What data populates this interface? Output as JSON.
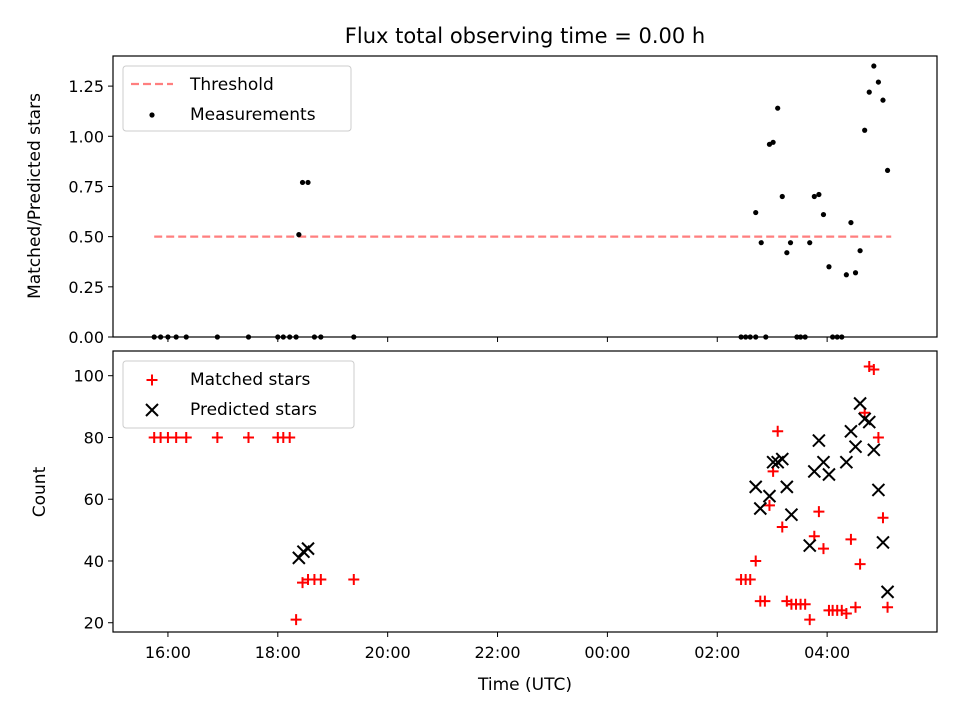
{
  "chart_data": [
    {
      "type": "scatter",
      "title": "Flux total observing time = 0.00 h",
      "xlabel": "",
      "ylabel": "Matched/Predicted stars",
      "xlim": [
        "2023-01-01T15:00",
        "2023-01-02T06:00"
      ],
      "ylim": [
        0,
        1.4
      ],
      "yticks": [
        0.0,
        0.25,
        0.5,
        0.75,
        1.0,
        1.25
      ],
      "ytick_labels": [
        "0.00",
        "0.25",
        "0.50",
        "0.75",
        "1.00",
        "1.25"
      ],
      "grid": false,
      "legend": "upper left",
      "threshold": {
        "name": "Threshold",
        "value": 0.5,
        "x_range": [
          "2023-01-01T15:45",
          "2023-01-02T05:10"
        ],
        "color": "#ff7f7f"
      },
      "series": [
        {
          "name": "Measurements",
          "color": "#000000",
          "points": [
            [
              "2023-01-01T15:45",
              0
            ],
            [
              "2023-01-01T15:52",
              0
            ],
            [
              "2023-01-01T16:00",
              0
            ],
            [
              "2023-01-01T16:09",
              0
            ],
            [
              "2023-01-01T16:20",
              0
            ],
            [
              "2023-01-01T16:54",
              0
            ],
            [
              "2023-01-01T17:28",
              0
            ],
            [
              "2023-01-01T18:00",
              0
            ],
            [
              "2023-01-01T18:06",
              0
            ],
            [
              "2023-01-01T18:13",
              0
            ],
            [
              "2023-01-01T18:20",
              0
            ],
            [
              "2023-01-01T18:23",
              0.51
            ],
            [
              "2023-01-01T18:27",
              0.77
            ],
            [
              "2023-01-01T18:33",
              0.77
            ],
            [
              "2023-01-01T18:40",
              0
            ],
            [
              "2023-01-01T18:47",
              0
            ],
            [
              "2023-01-01T19:23",
              0
            ],
            [
              "2023-01-02T02:26",
              0
            ],
            [
              "2023-01-02T02:31",
              0
            ],
            [
              "2023-01-02T02:36",
              0
            ],
            [
              "2023-01-02T02:42",
              0
            ],
            [
              "2023-01-02T02:42",
              0.62
            ],
            [
              "2023-01-02T02:48",
              0.47
            ],
            [
              "2023-01-02T02:53",
              0
            ],
            [
              "2023-01-02T02:57",
              0.96
            ],
            [
              "2023-01-02T03:01",
              0.97
            ],
            [
              "2023-01-02T03:06",
              1.14
            ],
            [
              "2023-01-02T03:11",
              0.7
            ],
            [
              "2023-01-02T03:16",
              0.42
            ],
            [
              "2023-01-02T03:20",
              0.47
            ],
            [
              "2023-01-02T03:27",
              0
            ],
            [
              "2023-01-02T03:31",
              0
            ],
            [
              "2023-01-02T03:36",
              0
            ],
            [
              "2023-01-02T03:41",
              0.47
            ],
            [
              "2023-01-02T03:46",
              0.7
            ],
            [
              "2023-01-02T03:51",
              0.71
            ],
            [
              "2023-01-02T03:56",
              0.61
            ],
            [
              "2023-01-02T04:02",
              0.35
            ],
            [
              "2023-01-02T04:06",
              0
            ],
            [
              "2023-01-02T04:11",
              0
            ],
            [
              "2023-01-02T04:16",
              0
            ],
            [
              "2023-01-02T04:21",
              0.31
            ],
            [
              "2023-01-02T04:26",
              0.57
            ],
            [
              "2023-01-02T04:31",
              0.32
            ],
            [
              "2023-01-02T04:36",
              0.43
            ],
            [
              "2023-01-02T04:41",
              1.03
            ],
            [
              "2023-01-02T04:46",
              1.22
            ],
            [
              "2023-01-02T04:51",
              1.35
            ],
            [
              "2023-01-02T04:56",
              1.27
            ],
            [
              "2023-01-02T05:01",
              1.18
            ],
            [
              "2023-01-02T05:06",
              0.83
            ]
          ]
        }
      ]
    },
    {
      "type": "scatter",
      "xlabel": "Time (UTC)",
      "ylabel": "Count",
      "xlim": [
        "2023-01-01T15:00",
        "2023-01-02T06:00"
      ],
      "ylim": [
        17,
        108
      ],
      "yticks": [
        20,
        40,
        60,
        80,
        100
      ],
      "xticks": [
        "2023-01-01T16:00",
        "2023-01-01T18:00",
        "2023-01-01T20:00",
        "2023-01-01T22:00",
        "2023-01-02T00:00",
        "2023-01-02T02:00",
        "2023-01-02T04:00"
      ],
      "xtick_labels": [
        "16:00",
        "18:00",
        "20:00",
        "22:00",
        "00:00",
        "02:00",
        "04:00"
      ],
      "grid": false,
      "legend": "upper left",
      "series": [
        {
          "name": "Matched stars",
          "marker": "+",
          "color": "#ff0000",
          "points": [
            [
              "2023-01-01T15:45",
              80
            ],
            [
              "2023-01-01T15:52",
              80
            ],
            [
              "2023-01-01T16:00",
              80
            ],
            [
              "2023-01-01T16:09",
              80
            ],
            [
              "2023-01-01T16:20",
              80
            ],
            [
              "2023-01-01T16:54",
              80
            ],
            [
              "2023-01-01T17:28",
              80
            ],
            [
              "2023-01-01T18:00",
              80
            ],
            [
              "2023-01-01T18:06",
              80
            ],
            [
              "2023-01-01T18:13",
              80
            ],
            [
              "2023-01-01T18:20",
              21
            ],
            [
              "2023-01-01T18:27",
              33
            ],
            [
              "2023-01-01T18:33",
              34
            ],
            [
              "2023-01-01T18:40",
              34
            ],
            [
              "2023-01-01T18:47",
              34
            ],
            [
              "2023-01-01T19:23",
              34
            ],
            [
              "2023-01-02T02:26",
              34
            ],
            [
              "2023-01-02T02:31",
              34
            ],
            [
              "2023-01-02T02:36",
              34
            ],
            [
              "2023-01-02T02:42",
              40
            ],
            [
              "2023-01-02T02:47",
              27
            ],
            [
              "2023-01-02T02:52",
              27
            ],
            [
              "2023-01-02T02:57",
              58
            ],
            [
              "2023-01-02T03:01",
              69
            ],
            [
              "2023-01-02T03:06",
              82
            ],
            [
              "2023-01-02T03:11",
              51
            ],
            [
              "2023-01-02T03:16",
              27
            ],
            [
              "2023-01-02T03:21",
              26
            ],
            [
              "2023-01-02T03:26",
              26
            ],
            [
              "2023-01-02T03:31",
              26
            ],
            [
              "2023-01-02T03:36",
              26
            ],
            [
              "2023-01-02T03:41",
              21
            ],
            [
              "2023-01-02T03:46",
              48
            ],
            [
              "2023-01-02T03:51",
              56
            ],
            [
              "2023-01-02T03:56",
              44
            ],
            [
              "2023-01-02T04:02",
              24
            ],
            [
              "2023-01-02T04:06",
              24
            ],
            [
              "2023-01-02T04:11",
              24
            ],
            [
              "2023-01-02T04:16",
              24
            ],
            [
              "2023-01-02T04:21",
              23
            ],
            [
              "2023-01-02T04:26",
              47
            ],
            [
              "2023-01-02T04:31",
              25
            ],
            [
              "2023-01-02T04:36",
              39
            ],
            [
              "2023-01-02T04:41",
              88
            ],
            [
              "2023-01-02T04:46",
              103
            ],
            [
              "2023-01-02T04:51",
              102
            ],
            [
              "2023-01-02T04:56",
              80
            ],
            [
              "2023-01-02T05:01",
              54
            ],
            [
              "2023-01-02T05:06",
              25
            ]
          ]
        },
        {
          "name": "Predicted stars",
          "marker": "x",
          "color": "#000000",
          "points": [
            [
              "2023-01-01T18:23",
              41
            ],
            [
              "2023-01-01T18:28",
              43
            ],
            [
              "2023-01-01T18:33",
              44
            ],
            [
              "2023-01-02T02:42",
              64
            ],
            [
              "2023-01-02T02:47",
              57
            ],
            [
              "2023-01-02T02:57",
              61
            ],
            [
              "2023-01-02T03:01",
              72
            ],
            [
              "2023-01-02T03:06",
              72
            ],
            [
              "2023-01-02T03:11",
              73
            ],
            [
              "2023-01-02T03:16",
              64
            ],
            [
              "2023-01-02T03:21",
              55
            ],
            [
              "2023-01-02T03:41",
              45
            ],
            [
              "2023-01-02T03:46",
              69
            ],
            [
              "2023-01-02T03:51",
              79
            ],
            [
              "2023-01-02T03:56",
              72
            ],
            [
              "2023-01-02T04:02",
              68
            ],
            [
              "2023-01-02T04:21",
              72
            ],
            [
              "2023-01-02T04:26",
              82
            ],
            [
              "2023-01-02T04:31",
              77
            ],
            [
              "2023-01-02T04:36",
              91
            ],
            [
              "2023-01-02T04:41",
              86
            ],
            [
              "2023-01-02T04:46",
              85
            ],
            [
              "2023-01-02T04:51",
              76
            ],
            [
              "2023-01-02T04:56",
              63
            ],
            [
              "2023-01-02T05:01",
              46
            ],
            [
              "2023-01-02T05:06",
              30
            ]
          ]
        }
      ]
    }
  ]
}
